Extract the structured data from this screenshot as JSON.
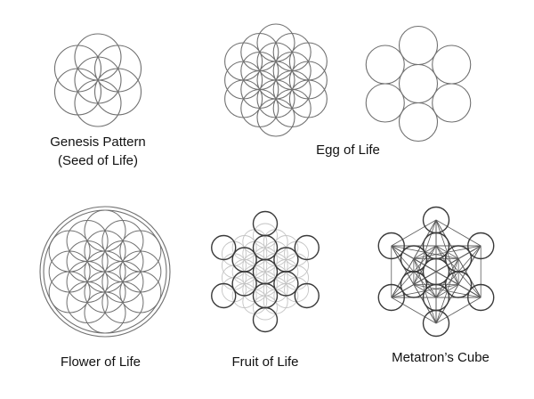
{
  "colors": {
    "background": "#ffffff",
    "stroke_main": "#707070",
    "stroke_dark": "#3a3a3a",
    "stroke_light": "#c4c4c4",
    "text": "#111111"
  },
  "figures": {
    "seed": {
      "label_line1": "Genesis Pattern",
      "label_line2": "(Seed of Life)"
    },
    "egg": {
      "label": "Egg of Life"
    },
    "flower": {
      "label": "Flower of Life"
    },
    "fruit": {
      "label": "Fruit of Life"
    },
    "metatron": {
      "label": "Metatron’s Cube"
    }
  }
}
